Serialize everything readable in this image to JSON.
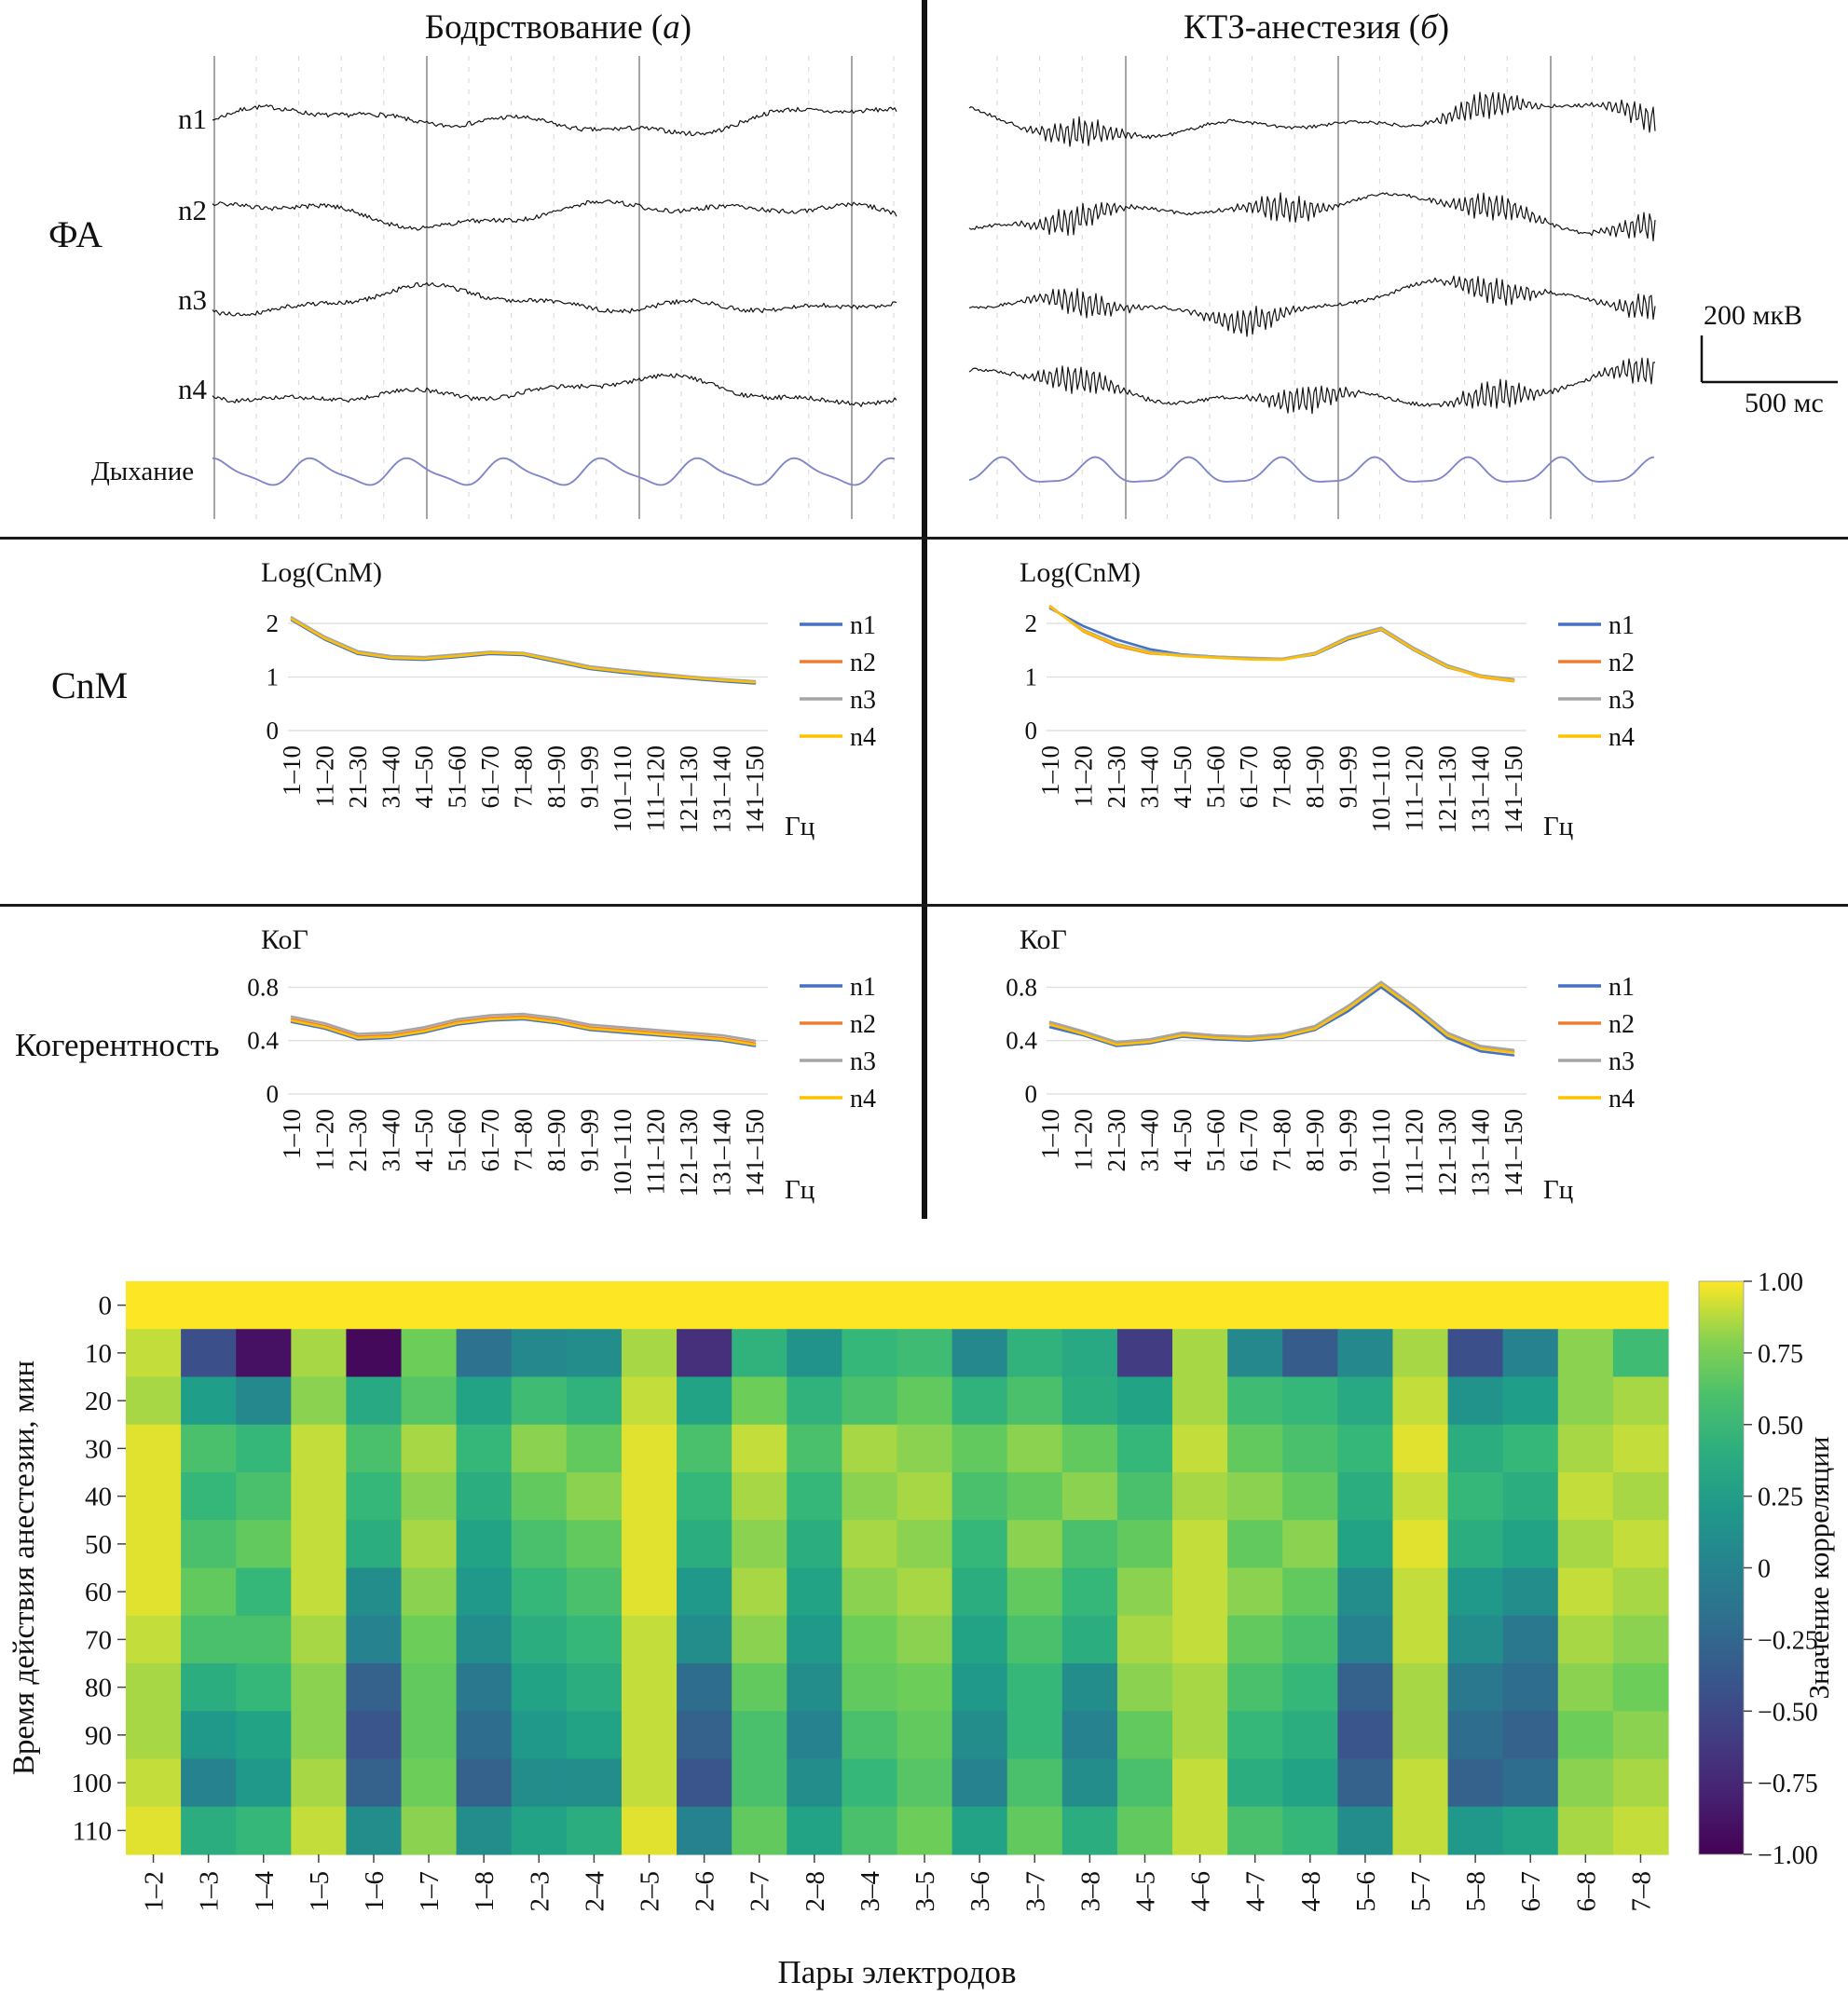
{
  "header": {
    "left": {
      "pre": "Бодрствование (",
      "em": "а",
      "post": ")"
    },
    "right": {
      "pre": "КТЗ-анестезия (",
      "em": "б",
      "post": ")"
    }
  },
  "eeg": {
    "group_label": "ФА",
    "channels": [
      "n1",
      "n2",
      "n3",
      "n4"
    ],
    "breath_label": "Дыхание",
    "scale_voltage": "200 мкВ",
    "scale_time": "500 мс"
  },
  "section_labels": {
    "cnm": "CnM",
    "coherence": "Когерентность"
  },
  "colors": {
    "n1": "#4472c4",
    "n2": "#ed7d31",
    "n3": "#a5a5a5",
    "n4": "#ffc000",
    "breath": "#8087c9"
  },
  "chart_data": [
    {
      "id": "cnm_wake",
      "type": "line",
      "panel": "Бодрствование (а)",
      "title": "Log(CnM)",
      "xlabel": "Гц",
      "ylim": [
        0,
        2.4
      ],
      "yticks": [
        0,
        1,
        2
      ],
      "grid": true,
      "legend_position": "right",
      "categories": [
        "1–10",
        "11–20",
        "21–30",
        "31–40",
        "41–50",
        "51–60",
        "61–70",
        "71–80",
        "81–90",
        "91–99",
        "101–110",
        "111–120",
        "121–130",
        "131–140",
        "141–150"
      ],
      "series": [
        {
          "name": "n1",
          "color": "#4472c4",
          "values": [
            2.06,
            1.7,
            1.43,
            1.34,
            1.32,
            1.37,
            1.43,
            1.41,
            1.28,
            1.15,
            1.08,
            1.02,
            0.97,
            0.92,
            0.88
          ]
        },
        {
          "name": "n2",
          "color": "#ed7d31",
          "values": [
            2.09,
            1.73,
            1.46,
            1.37,
            1.35,
            1.4,
            1.46,
            1.44,
            1.31,
            1.18,
            1.11,
            1.05,
            1.0,
            0.95,
            0.91
          ]
        },
        {
          "name": "n3",
          "color": "#a5a5a5",
          "values": [
            2.11,
            1.75,
            1.48,
            1.39,
            1.37,
            1.42,
            1.47,
            1.45,
            1.33,
            1.2,
            1.13,
            1.07,
            1.01,
            0.96,
            0.92
          ]
        },
        {
          "name": "n4",
          "color": "#ffc000",
          "values": [
            2.08,
            1.72,
            1.45,
            1.36,
            1.34,
            1.39,
            1.45,
            1.43,
            1.3,
            1.17,
            1.1,
            1.04,
            0.99,
            0.94,
            0.9
          ]
        }
      ]
    },
    {
      "id": "cnm_ktz",
      "type": "line",
      "panel": "КТЗ-анестезия (б)",
      "title": "Log(CnM)",
      "xlabel": "Гц",
      "ylim": [
        0,
        2.4
      ],
      "yticks": [
        0,
        1,
        2
      ],
      "grid": true,
      "legend_position": "right",
      "categories": [
        "1–10",
        "11–20",
        "21–30",
        "31–40",
        "41–50",
        "51–60",
        "61–70",
        "71–80",
        "81–90",
        "91–99",
        "101–110",
        "111–120",
        "121–130",
        "131–140",
        "141–150"
      ],
      "series": [
        {
          "name": "n1",
          "color": "#4472c4",
          "values": [
            2.28,
            1.95,
            1.7,
            1.52,
            1.42,
            1.38,
            1.35,
            1.33,
            1.42,
            1.7,
            1.88,
            1.5,
            1.18,
            1.02,
            0.95
          ]
        },
        {
          "name": "n2",
          "color": "#ed7d31",
          "values": [
            2.32,
            1.85,
            1.58,
            1.44,
            1.4,
            1.37,
            1.34,
            1.33,
            1.44,
            1.73,
            1.9,
            1.52,
            1.2,
            1.0,
            0.92
          ]
        },
        {
          "name": "n3",
          "color": "#a5a5a5",
          "values": [
            2.3,
            1.88,
            1.62,
            1.47,
            1.41,
            1.38,
            1.36,
            1.34,
            1.45,
            1.75,
            1.92,
            1.54,
            1.22,
            1.03,
            0.96
          ]
        },
        {
          "name": "n4",
          "color": "#ffc000",
          "values": [
            2.31,
            1.86,
            1.6,
            1.45,
            1.39,
            1.36,
            1.33,
            1.32,
            1.43,
            1.72,
            1.89,
            1.51,
            1.19,
            1.01,
            0.93
          ]
        }
      ]
    },
    {
      "id": "koh_wake",
      "type": "line",
      "panel": "Бодрствование (а)",
      "title": "КоГ",
      "xlabel": "Гц",
      "ylim": [
        0,
        0.95
      ],
      "yticks": [
        0,
        0.4,
        0.8
      ],
      "grid": true,
      "legend_position": "right",
      "categories": [
        "1–10",
        "11–20",
        "21–30",
        "31–40",
        "41–50",
        "51–60",
        "61–70",
        "71–80",
        "81–90",
        "91–99",
        "101–110",
        "111–120",
        "121–130",
        "131–140",
        "141–150"
      ],
      "series": [
        {
          "name": "n1",
          "color": "#4472c4",
          "values": [
            0.54,
            0.49,
            0.41,
            0.42,
            0.46,
            0.52,
            0.55,
            0.56,
            0.53,
            0.48,
            0.46,
            0.44,
            0.42,
            0.4,
            0.36
          ]
        },
        {
          "name": "n2",
          "color": "#ed7d31",
          "values": [
            0.56,
            0.51,
            0.43,
            0.44,
            0.48,
            0.54,
            0.57,
            0.58,
            0.55,
            0.5,
            0.48,
            0.46,
            0.44,
            0.42,
            0.38
          ]
        },
        {
          "name": "n3",
          "color": "#a5a5a5",
          "values": [
            0.58,
            0.53,
            0.45,
            0.46,
            0.5,
            0.56,
            0.59,
            0.6,
            0.57,
            0.52,
            0.5,
            0.48,
            0.46,
            0.44,
            0.4
          ]
        },
        {
          "name": "n4",
          "color": "#ffc000",
          "values": [
            0.55,
            0.5,
            0.42,
            0.43,
            0.47,
            0.53,
            0.56,
            0.57,
            0.54,
            0.49,
            0.47,
            0.45,
            0.43,
            0.41,
            0.37
          ]
        }
      ]
    },
    {
      "id": "koh_ktz",
      "type": "line",
      "panel": "КТЗ-анестезия (б)",
      "title": "КоГ",
      "xlabel": "Гц",
      "ylim": [
        0,
        0.95
      ],
      "yticks": [
        0,
        0.4,
        0.8
      ],
      "grid": true,
      "legend_position": "right",
      "categories": [
        "1–10",
        "11–20",
        "21–30",
        "31–40",
        "41–50",
        "51–60",
        "61–70",
        "71–80",
        "81–90",
        "91–99",
        "101–110",
        "111–120",
        "121–130",
        "131–140",
        "141–150"
      ],
      "series": [
        {
          "name": "n1",
          "color": "#4472c4",
          "values": [
            0.5,
            0.44,
            0.36,
            0.38,
            0.43,
            0.41,
            0.4,
            0.42,
            0.48,
            0.62,
            0.8,
            0.62,
            0.42,
            0.32,
            0.29
          ]
        },
        {
          "name": "n2",
          "color": "#ed7d31",
          "values": [
            0.53,
            0.46,
            0.38,
            0.4,
            0.45,
            0.43,
            0.42,
            0.44,
            0.5,
            0.65,
            0.83,
            0.65,
            0.45,
            0.35,
            0.32
          ]
        },
        {
          "name": "n3",
          "color": "#a5a5a5",
          "values": [
            0.54,
            0.47,
            0.39,
            0.41,
            0.46,
            0.44,
            0.43,
            0.45,
            0.51,
            0.66,
            0.84,
            0.66,
            0.46,
            0.36,
            0.33
          ]
        },
        {
          "name": "n4",
          "color": "#ffc000",
          "values": [
            0.52,
            0.45,
            0.37,
            0.39,
            0.44,
            0.42,
            0.41,
            0.43,
            0.49,
            0.64,
            0.82,
            0.64,
            0.44,
            0.34,
            0.31
          ]
        }
      ]
    },
    {
      "id": "correlation_heatmap",
      "type": "heatmap",
      "xlabel": "Пары электродов",
      "ylabel": "Время действия анестезии, мин",
      "colorbar_label": "Значение корреляции",
      "colorbar_ticks": [
        "1.00",
        "0.75",
        "0.50",
        "0.25",
        "0",
        "−0.25",
        "−0.50",
        "−0.75",
        "−1.00"
      ],
      "zlim": [
        -1,
        1
      ],
      "x_categories": [
        "1–2",
        "1–3",
        "1–4",
        "1–5",
        "1–6",
        "1–7",
        "1–8",
        "2–3",
        "2–4",
        "2–5",
        "2–6",
        "2–7",
        "2–8",
        "3–4",
        "3–5",
        "3–6",
        "3–7",
        "3–8",
        "4–5",
        "4–6",
        "4–7",
        "4–8",
        "5–6",
        "5–7",
        "5–8",
        "6–7",
        "6–8",
        "7–8"
      ],
      "y_categories": [
        "0",
        "10",
        "20",
        "30",
        "40",
        "50",
        "60",
        "70",
        "80",
        "90",
        "100",
        "110"
      ],
      "values": [
        [
          1,
          1,
          1,
          1,
          1,
          1,
          1,
          1,
          1,
          1,
          1,
          1,
          1,
          1,
          1,
          1,
          1,
          1,
          1,
          1,
          1,
          1,
          1,
          1,
          1,
          1,
          1,
          1
        ],
        [
          0.9,
          -0.45,
          -0.9,
          0.85,
          -0.95,
          0.75,
          -0.15,
          0.05,
          0.1,
          0.85,
          -0.7,
          0.45,
          0.15,
          0.5,
          0.55,
          0.05,
          0.45,
          0.35,
          -0.6,
          0.85,
          0.05,
          -0.35,
          0.05,
          0.85,
          -0.45,
          0,
          0.8,
          0.55
        ],
        [
          0.85,
          0.25,
          0.05,
          0.8,
          0.35,
          0.65,
          0.3,
          0.55,
          0.45,
          0.9,
          0.3,
          0.75,
          0.45,
          0.6,
          0.7,
          0.45,
          0.6,
          0.4,
          0.3,
          0.85,
          0.55,
          0.5,
          0.35,
          0.9,
          0.15,
          0.25,
          0.8,
          0.85
        ],
        [
          0.95,
          0.6,
          0.5,
          0.9,
          0.6,
          0.85,
          0.5,
          0.8,
          0.7,
          0.95,
          0.6,
          0.9,
          0.6,
          0.85,
          0.8,
          0.7,
          0.8,
          0.7,
          0.5,
          0.9,
          0.7,
          0.6,
          0.5,
          0.95,
          0.4,
          0.5,
          0.85,
          0.9
        ],
        [
          0.95,
          0.5,
          0.6,
          0.9,
          0.5,
          0.8,
          0.4,
          0.7,
          0.8,
          0.95,
          0.5,
          0.85,
          0.5,
          0.8,
          0.85,
          0.6,
          0.7,
          0.8,
          0.6,
          0.85,
          0.8,
          0.7,
          0.4,
          0.9,
          0.5,
          0.4,
          0.9,
          0.85
        ],
        [
          0.95,
          0.6,
          0.7,
          0.9,
          0.4,
          0.85,
          0.3,
          0.6,
          0.7,
          0.95,
          0.4,
          0.8,
          0.4,
          0.85,
          0.8,
          0.5,
          0.8,
          0.6,
          0.7,
          0.9,
          0.7,
          0.8,
          0.3,
          0.95,
          0.4,
          0.3,
          0.85,
          0.9
        ],
        [
          0.95,
          0.7,
          0.5,
          0.9,
          0.1,
          0.8,
          0.2,
          0.5,
          0.6,
          0.95,
          0.2,
          0.85,
          0.3,
          0.8,
          0.85,
          0.4,
          0.7,
          0.5,
          0.8,
          0.9,
          0.8,
          0.7,
          0.1,
          0.9,
          0.2,
          0.1,
          0.9,
          0.85
        ],
        [
          0.9,
          0.6,
          0.6,
          0.85,
          0,
          0.75,
          0.1,
          0.4,
          0.5,
          0.9,
          0.1,
          0.8,
          0.2,
          0.75,
          0.8,
          0.3,
          0.6,
          0.4,
          0.85,
          0.9,
          0.7,
          0.6,
          0,
          0.9,
          0.1,
          -0.1,
          0.85,
          0.8
        ],
        [
          0.85,
          0.4,
          0.5,
          0.8,
          -0.3,
          0.7,
          -0.1,
          0.3,
          0.4,
          0.9,
          -0.2,
          0.7,
          0.1,
          0.7,
          0.75,
          0.2,
          0.5,
          0.1,
          0.8,
          0.85,
          0.6,
          0.5,
          -0.3,
          0.85,
          -0.1,
          -0.2,
          0.8,
          0.75
        ],
        [
          0.85,
          0.2,
          0.3,
          0.8,
          -0.4,
          0.7,
          -0.2,
          0.2,
          0.3,
          0.9,
          -0.3,
          0.6,
          0,
          0.6,
          0.7,
          0.1,
          0.5,
          0,
          0.7,
          0.85,
          0.5,
          0.4,
          -0.4,
          0.85,
          -0.2,
          -0.3,
          0.75,
          0.8
        ],
        [
          0.9,
          0,
          0.2,
          0.85,
          -0.3,
          0.75,
          -0.3,
          0.1,
          0.1,
          0.9,
          -0.4,
          0.6,
          0.1,
          0.5,
          0.65,
          0,
          0.6,
          0.1,
          0.6,
          0.9,
          0.4,
          0.3,
          -0.3,
          0.9,
          -0.3,
          -0.2,
          0.8,
          0.85
        ],
        [
          0.95,
          0.4,
          0.5,
          0.9,
          0.1,
          0.8,
          0.1,
          0.3,
          0.4,
          0.95,
          0,
          0.7,
          0.3,
          0.6,
          0.75,
          0.3,
          0.7,
          0.4,
          0.7,
          0.9,
          0.6,
          0.5,
          0.1,
          0.9,
          0.2,
          0.3,
          0.85,
          0.9
        ]
      ]
    }
  ]
}
